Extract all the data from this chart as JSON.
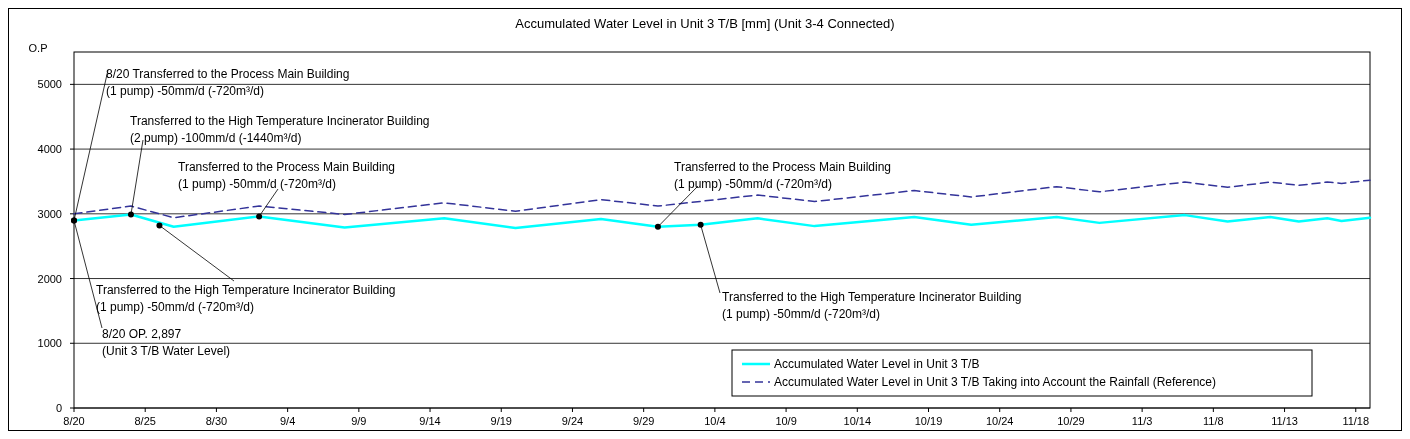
{
  "chart_data": {
    "type": "line",
    "title": "Accumulated Water Level in Unit 3 T/B [mm] (Unit 3-4 Connected)",
    "ylabel": "O.P",
    "xlim": [
      "--08-20",
      "--11-19"
    ],
    "xticks": [
      {
        "value": "--08-20",
        "label": "8/20"
      },
      {
        "value": "--08-25",
        "label": "8/25"
      },
      {
        "value": "--08-30",
        "label": "8/30"
      },
      {
        "value": "--09-04",
        "label": "9/4"
      },
      {
        "value": "--09-09",
        "label": "9/9"
      },
      {
        "value": "--09-14",
        "label": "9/14"
      },
      {
        "value": "--09-19",
        "label": "9/19"
      },
      {
        "value": "--09-24",
        "label": "9/24"
      },
      {
        "value": "--09-29",
        "label": "9/29"
      },
      {
        "value": "--10-04",
        "label": "10/4"
      },
      {
        "value": "--10-09",
        "label": "10/9"
      },
      {
        "value": "--10-14",
        "label": "10/14"
      },
      {
        "value": "--10-19",
        "label": "10/19"
      },
      {
        "value": "--10-24",
        "label": "10/24"
      },
      {
        "value": "--10-29",
        "label": "10/29"
      },
      {
        "value": "--11-03",
        "label": "11/3"
      },
      {
        "value": "--11-08",
        "label": "11/8"
      },
      {
        "value": "--11-13",
        "label": "11/13"
      },
      {
        "value": "--11-18",
        "label": "11/18"
      }
    ],
    "ylim": [
      0,
      5500
    ],
    "yticks": [
      0,
      1000,
      2000,
      3000,
      4000,
      5000
    ],
    "grid": "y",
    "legend": "bottom right",
    "series": [
      {
        "name": "Accumulated Water Level in Unit 3 T/B",
        "color": "#00ffff",
        "line_style": "solid",
        "x": [
          "--08-20",
          "--08-24",
          "--08-27",
          "--09-02",
          "--09-08",
          "--09-15",
          "--09-20",
          "--09-26",
          "--09-30",
          "--10-03",
          "--10-07",
          "--10-11",
          "--10-18",
          "--10-22",
          "--10-28",
          "--10-31",
          "--11-06",
          "--11-09",
          "--11-12",
          "--11-14",
          "--11-16",
          "--11-17",
          "--11-19"
        ],
        "values": [
          2897,
          2990,
          2800,
          2960,
          2790,
          2930,
          2780,
          2920,
          2800,
          2830,
          2930,
          2810,
          2950,
          2830,
          2950,
          2860,
          2980,
          2880,
          2950,
          2880,
          2930,
          2890,
          2940
        ]
      },
      {
        "name": "Accumulated Water Level in Unit 3 T/B Taking into Account the Rainfall (Reference)",
        "color": "#333399",
        "line_style": "dashed",
        "x": [
          "--08-20",
          "--08-24",
          "--08-27",
          "--09-02",
          "--09-08",
          "--09-15",
          "--09-20",
          "--09-26",
          "--09-30",
          "--10-07",
          "--10-11",
          "--10-18",
          "--10-22",
          "--10-28",
          "--10-31",
          "--11-06",
          "--11-09",
          "--11-12",
          "--11-14",
          "--11-16",
          "--11-17",
          "--11-19"
        ],
        "values": [
          3000,
          3120,
          2940,
          3120,
          2990,
          3170,
          3040,
          3220,
          3120,
          3290,
          3190,
          3360,
          3260,
          3420,
          3340,
          3490,
          3410,
          3490,
          3440,
          3490,
          3470,
          3520
        ]
      }
    ],
    "annotations": [
      {
        "text": "8/20 Transferred to the Process Main Building\n(1 pump) -50mm/d (-720m³/d)",
        "x": "--08-20",
        "y": 2897
      },
      {
        "text": "Transferred to the High Temperature Incinerator Building\n(2 pump) -100mm/d (-1440m³/d)",
        "x": "--08-24",
        "y": 2990
      },
      {
        "text": "Transferred to the Process Main Building\n(1 pump) -50mm/d (-720m³/d)",
        "x": "--09-02",
        "y": 2960
      },
      {
        "text": "Transferred to the High Temperature Incinerator Building\n(1 pump) -50mm/d (-720m³/d)",
        "x": "--08-26",
        "y": 2820
      },
      {
        "text": "Transferred to the Process Main Building\n(1 pump) -50mm/d (-720m³/d)",
        "x": "--09-30",
        "y": 2800
      },
      {
        "text": "Transferred to the High Temperature Incinerator Building\n(1 pump) -50mm/d (-720m³/d)",
        "x": "--10-03",
        "y": 2830
      },
      {
        "text": "8/20 OP. 2,897\n(Unit 3 T/B Water Level)",
        "x": "--08-20",
        "y": 2897
      }
    ]
  }
}
